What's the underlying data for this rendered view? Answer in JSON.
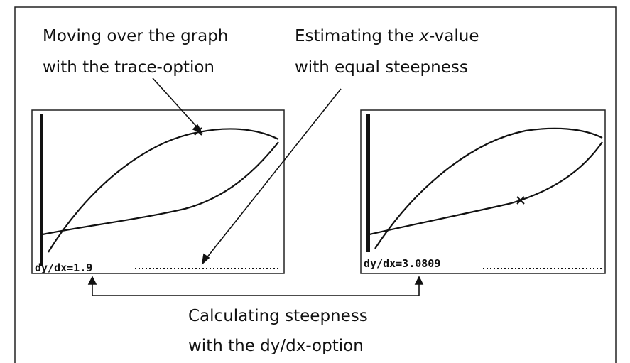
{
  "annotations": {
    "trace": {
      "lines": [
        "Moving over the graph",
        "with the trace-option"
      ]
    },
    "estimate": {
      "lines": [
        [
          "Estimating the ",
          "x",
          "-value"
        ],
        "with equal steepness"
      ]
    },
    "calculate": {
      "lines": [
        "Calculating steepness",
        "with the dy/dx-option"
      ]
    }
  },
  "screens": [
    {
      "readout": "dy/dx=1.9"
    },
    {
      "readout": "dy/dx=3.0809"
    }
  ]
}
